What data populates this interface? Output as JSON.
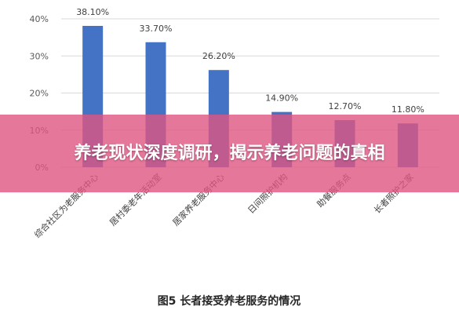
{
  "chart_data": {
    "type": "bar",
    "categories": [
      "综合社区为老服务中心",
      "居村委老年活动室",
      "居家养老服务中心",
      "日间照护机构",
      "助餐服务点",
      "长者照护之家"
    ],
    "values": [
      38.1,
      33.7,
      26.2,
      14.9,
      12.7,
      11.8
    ],
    "value_labels": [
      "38.10%",
      "33.70%",
      "26.20%",
      "14.90%",
      "12.70%",
      "11.80%"
    ],
    "yticks": [
      "0%",
      "10%",
      "20%",
      "30%",
      "40%"
    ],
    "ylim": [
      0,
      40
    ],
    "title": "",
    "caption": "图5 长者接受养老服务的情况",
    "xlabel": "",
    "ylabel": "",
    "grid": true,
    "bar_color": "#4472c4",
    "grid_color": "#d9d9d9"
  },
  "overlay": {
    "headline": "养老现状深度调研，揭示养老问题的真相",
    "color": "#de5582"
  }
}
